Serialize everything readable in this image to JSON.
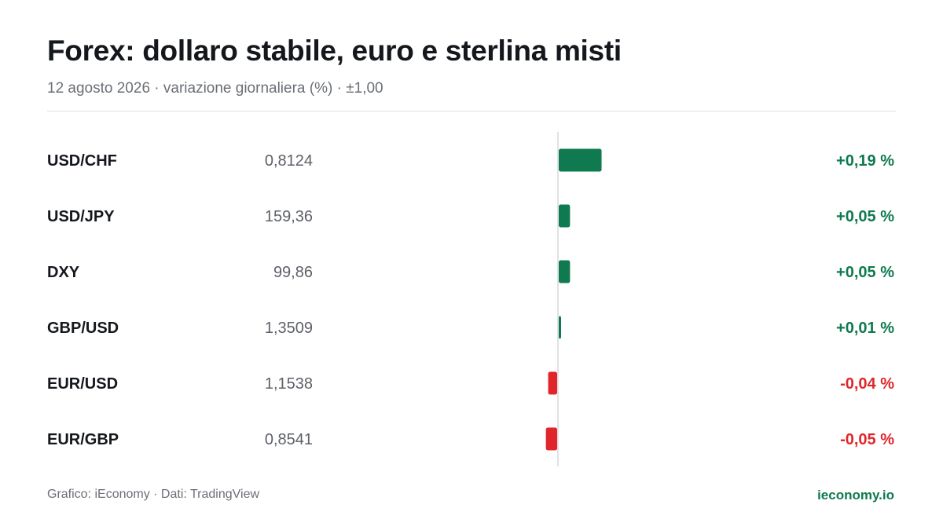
{
  "header": {
    "title": "Forex: dollaro stabile, euro e sterlina misti",
    "subtitle": "12 agosto 2026 · variazione giornaliera (%) · ±1,00"
  },
  "footer": {
    "source": "Grafico: iEconomy · Dati: TradingView",
    "brand": "ieconomy.io"
  },
  "colors": {
    "positive": "#0f7a4f",
    "negative": "#e0262b",
    "brand": "#0f7a4f"
  },
  "chart_data": {
    "type": "bar",
    "orientation": "horizontal",
    "title": "Forex: dollaro stabile, euro e sterlina misti",
    "subtitle": "12 agosto 2026 · variazione giornaliera (%) · ±1,00",
    "xlim": [
      -1.0,
      1.0
    ],
    "unit": "%",
    "rows": [
      {
        "label": "USD/CHF",
        "price": "0,8124",
        "change": 0.19,
        "change_label": "+0,19 %"
      },
      {
        "label": "USD/JPY",
        "price": "159,36",
        "change": 0.05,
        "change_label": "+0,05 %"
      },
      {
        "label": "DXY",
        "price": "99,86",
        "change": 0.05,
        "change_label": "+0,05 %"
      },
      {
        "label": "GBP/USD",
        "price": "1,3509",
        "change": 0.01,
        "change_label": "+0,01 %"
      },
      {
        "label": "EUR/USD",
        "price": "1,1538",
        "change": -0.04,
        "change_label": "-0,04 %"
      },
      {
        "label": "EUR/GBP",
        "price": "0,8541",
        "change": -0.05,
        "change_label": "-0,05 %"
      }
    ]
  }
}
